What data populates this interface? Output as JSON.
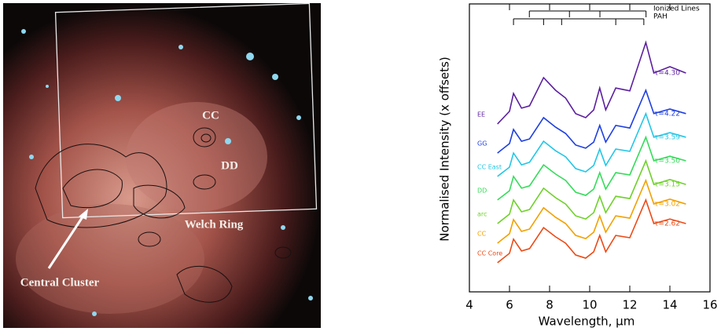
{
  "image": {
    "labels": [
      "CC",
      "DD",
      "Welch Ring",
      "Central Cluster"
    ]
  },
  "chart_data": {
    "type": "line",
    "xlabel": "Wavelength, μm",
    "ylabel": "Normalised Intensity (x offsets)",
    "xlim": [
      4,
      16
    ],
    "xticks": [
      4,
      6,
      8,
      10,
      12,
      14,
      16
    ],
    "ylim": [
      0,
      10
    ],
    "x": [
      5.4,
      6.0,
      6.2,
      6.6,
      7.0,
      7.7,
      8.3,
      8.8,
      9.3,
      9.8,
      10.2,
      10.5,
      10.8,
      11.3,
      12.0,
      12.8,
      13.2,
      14.0,
      14.8
    ],
    "annotations": [
      {
        "text": "Ionized Lines",
        "x": [
          6.99,
          8.99,
          10.51,
          12.81
        ]
      },
      {
        "text": "PAH",
        "x": [
          6.2,
          7.7,
          8.6,
          11.3,
          12.7
        ]
      }
    ],
    "series": [
      {
        "name": "EE",
        "annotation": "τ=4.30",
        "color": "#5b1f9e",
        "values": [
          5.83,
          6.27,
          6.89,
          6.38,
          6.46,
          7.44,
          7.0,
          6.73,
          6.19,
          6.05,
          6.32,
          7.08,
          6.32,
          7.08,
          6.98,
          8.66,
          7.6,
          7.82,
          7.6
        ]
      },
      {
        "name": "GG",
        "annotation": "τ=4.22",
        "color": "#1e3fe0",
        "values": [
          4.82,
          5.15,
          5.64,
          5.23,
          5.31,
          6.05,
          5.72,
          5.5,
          5.1,
          4.99,
          5.2,
          5.78,
          5.2,
          5.78,
          5.69,
          7.0,
          6.19,
          6.35,
          6.19
        ]
      },
      {
        "name": "CC East",
        "annotation": "τ=3.59",
        "color": "#22c6e6",
        "values": [
          4.01,
          4.33,
          4.82,
          4.41,
          4.5,
          5.23,
          4.9,
          4.69,
          4.28,
          4.17,
          4.39,
          4.96,
          4.39,
          4.96,
          4.88,
          6.19,
          5.37,
          5.53,
          5.37
        ]
      },
      {
        "name": "DD",
        "annotation": "τ=3.50",
        "color": "#35dc5a",
        "values": [
          3.19,
          3.51,
          4.01,
          3.6,
          3.68,
          4.41,
          4.09,
          3.87,
          3.46,
          3.35,
          3.57,
          4.14,
          3.57,
          4.14,
          4.06,
          5.37,
          4.55,
          4.71,
          4.55
        ]
      },
      {
        "name": "arc",
        "annotation": "τ=3.15",
        "color": "#6fd12a",
        "values": [
          2.37,
          2.7,
          3.19,
          2.78,
          2.86,
          3.6,
          3.27,
          3.05,
          2.64,
          2.53,
          2.75,
          3.32,
          2.75,
          3.32,
          3.24,
          4.55,
          3.73,
          3.9,
          3.73
        ]
      },
      {
        "name": "CC",
        "annotation": "τ=3.02",
        "color": "#f2a100",
        "values": [
          1.69,
          2.02,
          2.51,
          2.1,
          2.18,
          2.92,
          2.59,
          2.37,
          1.96,
          1.85,
          2.07,
          2.64,
          2.07,
          2.64,
          2.56,
          3.87,
          3.05,
          3.22,
          3.05
        ]
      },
      {
        "name": "CC Core",
        "annotation": "τ=2.62",
        "color": "#ec4a16",
        "values": [
          1.01,
          1.34,
          1.83,
          1.42,
          1.5,
          2.23,
          1.91,
          1.69,
          1.28,
          1.17,
          1.39,
          1.96,
          1.39,
          1.96,
          1.88,
          3.19,
          2.37,
          2.53,
          2.37
        ]
      }
    ]
  }
}
